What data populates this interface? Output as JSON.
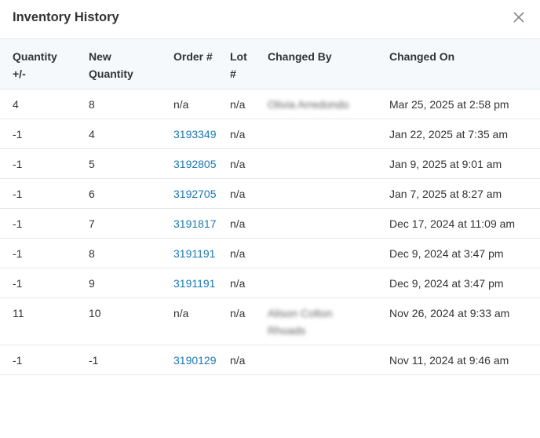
{
  "dialog": {
    "title": "Inventory History",
    "close_icon": "close-icon"
  },
  "table": {
    "headers": [
      "Quantity +/-",
      "New Quantity",
      "Order #",
      "Lot #",
      "Changed By",
      "Changed On"
    ],
    "rows": [
      {
        "qty_change": "4",
        "new_qty": "8",
        "order": "n/a",
        "order_link": false,
        "lot": "n/a",
        "changed_by": "Olivia Arredondo",
        "changed_on": "Mar 25, 2025 at 2:58 pm"
      },
      {
        "qty_change": "-1",
        "new_qty": "4",
        "order": "3193349",
        "order_link": true,
        "lot": "n/a",
        "changed_by": "",
        "changed_on": "Jan 22, 2025 at 7:35 am"
      },
      {
        "qty_change": "-1",
        "new_qty": "5",
        "order": "3192805",
        "order_link": true,
        "lot": "n/a",
        "changed_by": "",
        "changed_on": "Jan 9, 2025 at 9:01 am"
      },
      {
        "qty_change": "-1",
        "new_qty": "6",
        "order": "3192705",
        "order_link": true,
        "lot": "n/a",
        "changed_by": "",
        "changed_on": "Jan 7, 2025 at 8:27 am"
      },
      {
        "qty_change": "-1",
        "new_qty": "7",
        "order": "3191817",
        "order_link": true,
        "lot": "n/a",
        "changed_by": "",
        "changed_on": "Dec 17, 2024 at 11:09 am"
      },
      {
        "qty_change": "-1",
        "new_qty": "8",
        "order": "3191191",
        "order_link": true,
        "lot": "n/a",
        "changed_by": "",
        "changed_on": "Dec 9, 2024 at 3:47 pm"
      },
      {
        "qty_change": "-1",
        "new_qty": "9",
        "order": "3191191",
        "order_link": true,
        "lot": "n/a",
        "changed_by": "",
        "changed_on": "Dec 9, 2024 at 3:47 pm"
      },
      {
        "qty_change": "11",
        "new_qty": "10",
        "order": "n/a",
        "order_link": false,
        "lot": "n/a",
        "changed_by": "Alison Colton Rhoads",
        "changed_on": "Nov 26, 2024 at 9:33 am"
      },
      {
        "qty_change": "-1",
        "new_qty": "-1",
        "order": "3190129",
        "order_link": true,
        "lot": "n/a",
        "changed_by": "",
        "changed_on": "Nov 11, 2024 at 9:46 am"
      }
    ]
  },
  "colors": {
    "link": "#1a78b4",
    "header_bg": "#f5f9fc"
  }
}
